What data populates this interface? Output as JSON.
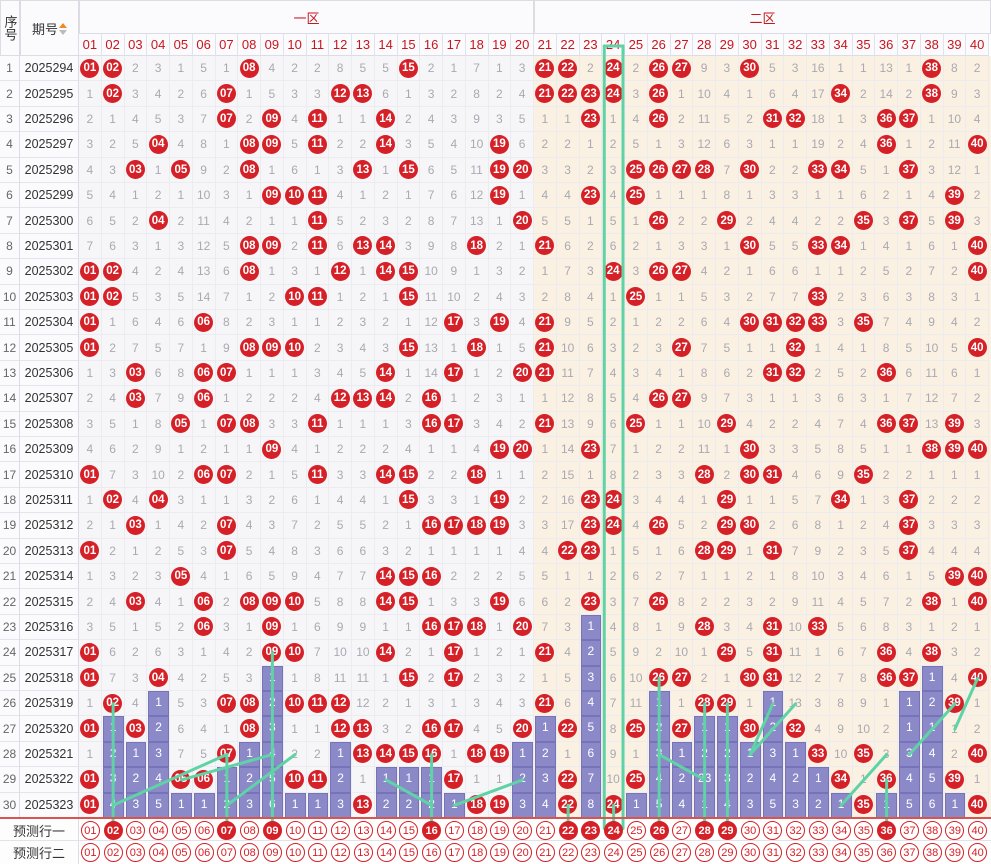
{
  "header": {
    "seq_label": "序号",
    "period_label": "期号",
    "zone1_label": "一区",
    "zone2_label": "二区",
    "numbers": [
      "01",
      "02",
      "03",
      "04",
      "05",
      "06",
      "07",
      "08",
      "09",
      "10",
      "11",
      "12",
      "13",
      "14",
      "15",
      "16",
      "17",
      "18",
      "19",
      "20",
      "21",
      "22",
      "23",
      "24",
      "25",
      "26",
      "27",
      "28",
      "29",
      "30",
      "31",
      "32",
      "33",
      "34",
      "35",
      "36",
      "37",
      "38",
      "39",
      "40"
    ]
  },
  "colors": {
    "ball": "#d62027",
    "bar": "#8c89c9",
    "trend_line": "#5fd3a5",
    "zone2_bg": "#fbf1e3"
  },
  "rows": [
    {
      "seq": "1",
      "period": "2025294",
      "cells": [
        "01",
        "02",
        "2",
        "3",
        "1",
        "5",
        "1",
        "08",
        "4",
        "2",
        "2",
        "8",
        "5",
        "5",
        "15",
        "2",
        "1",
        "7",
        "1",
        "3",
        "21",
        "22",
        "2",
        "24",
        "2",
        "26",
        "27",
        "9",
        "3",
        "30",
        "5",
        "3",
        "16",
        "1",
        "1",
        "13",
        "1",
        "38",
        "8",
        "2"
      ]
    },
    {
      "seq": "2",
      "period": "2025295",
      "cells": [
        "1",
        "02",
        "3",
        "4",
        "2",
        "6",
        "07",
        "1",
        "5",
        "3",
        "3",
        "12",
        "13",
        "6",
        "1",
        "3",
        "2",
        "8",
        "2",
        "4",
        "21",
        "22",
        "23",
        "24",
        "3",
        "26",
        "1",
        "10",
        "4",
        "1",
        "6",
        "4",
        "17",
        "34",
        "2",
        "14",
        "2",
        "38",
        "9",
        "3"
      ]
    },
    {
      "seq": "3",
      "period": "2025296",
      "cells": [
        "2",
        "1",
        "4",
        "5",
        "3",
        "7",
        "07",
        "2",
        "09",
        "4",
        "11",
        "1",
        "1",
        "14",
        "2",
        "4",
        "3",
        "9",
        "3",
        "5",
        "1",
        "1",
        "23",
        "1",
        "4",
        "26",
        "2",
        "11",
        "5",
        "2",
        "31",
        "32",
        "18",
        "1",
        "3",
        "36",
        "37",
        "1",
        "10",
        "4"
      ]
    },
    {
      "seq": "4",
      "period": "2025297",
      "cells": [
        "3",
        "2",
        "5",
        "04",
        "4",
        "8",
        "1",
        "08",
        "09",
        "5",
        "11",
        "2",
        "2",
        "14",
        "3",
        "5",
        "4",
        "10",
        "19",
        "6",
        "2",
        "2",
        "1",
        "2",
        "5",
        "1",
        "3",
        "12",
        "6",
        "3",
        "1",
        "1",
        "19",
        "2",
        "4",
        "36",
        "1",
        "2",
        "11",
        "40"
      ]
    },
    {
      "seq": "5",
      "period": "2025298",
      "cells": [
        "4",
        "3",
        "03",
        "1",
        "05",
        "9",
        "2",
        "08",
        "1",
        "6",
        "1",
        "3",
        "13",
        "1",
        "15",
        "6",
        "5",
        "11",
        "19",
        "20",
        "3",
        "3",
        "2",
        "3",
        "25",
        "26",
        "27",
        "28",
        "7",
        "30",
        "2",
        "2",
        "33",
        "34",
        "5",
        "1",
        "37",
        "3",
        "12",
        "1"
      ]
    },
    {
      "seq": "6",
      "period": "2025299",
      "cells": [
        "5",
        "4",
        "1",
        "2",
        "1",
        "10",
        "3",
        "1",
        "09",
        "10",
        "11",
        "4",
        "1",
        "2",
        "1",
        "7",
        "6",
        "12",
        "19",
        "1",
        "4",
        "4",
        "23",
        "4",
        "25",
        "1",
        "1",
        "1",
        "8",
        "1",
        "3",
        "3",
        "1",
        "1",
        "6",
        "2",
        "1",
        "4",
        "39",
        "2"
      ]
    },
    {
      "seq": "7",
      "period": "2025300",
      "cells": [
        "6",
        "5",
        "2",
        "04",
        "2",
        "11",
        "4",
        "2",
        "1",
        "1",
        "11",
        "5",
        "2",
        "3",
        "2",
        "8",
        "7",
        "13",
        "1",
        "20",
        "5",
        "5",
        "1",
        "5",
        "1",
        "26",
        "2",
        "2",
        "29",
        "2",
        "4",
        "4",
        "2",
        "2",
        "35",
        "3",
        "37",
        "5",
        "39",
        "3"
      ]
    },
    {
      "seq": "8",
      "period": "2025301",
      "cells": [
        "7",
        "6",
        "3",
        "1",
        "3",
        "12",
        "5",
        "08",
        "09",
        "2",
        "11",
        "6",
        "13",
        "14",
        "3",
        "9",
        "8",
        "18",
        "2",
        "1",
        "21",
        "6",
        "2",
        "6",
        "2",
        "1",
        "3",
        "3",
        "1",
        "30",
        "5",
        "5",
        "33",
        "34",
        "1",
        "4",
        "1",
        "6",
        "1",
        "40"
      ]
    },
    {
      "seq": "9",
      "period": "2025302",
      "cells": [
        "01",
        "02",
        "4",
        "2",
        "4",
        "13",
        "6",
        "08",
        "1",
        "3",
        "1",
        "12",
        "1",
        "14",
        "15",
        "10",
        "9",
        "1",
        "3",
        "2",
        "1",
        "7",
        "3",
        "24",
        "3",
        "26",
        "27",
        "4",
        "2",
        "1",
        "6",
        "6",
        "1",
        "1",
        "2",
        "5",
        "2",
        "7",
        "2",
        "40"
      ]
    },
    {
      "seq": "10",
      "period": "2025303",
      "cells": [
        "01",
        "02",
        "5",
        "3",
        "5",
        "14",
        "7",
        "1",
        "2",
        "10",
        "11",
        "1",
        "2",
        "1",
        "15",
        "11",
        "10",
        "2",
        "4",
        "3",
        "2",
        "8",
        "4",
        "1",
        "25",
        "1",
        "1",
        "5",
        "3",
        "2",
        "7",
        "7",
        "33",
        "2",
        "3",
        "6",
        "3",
        "8",
        "3",
        "1"
      ]
    },
    {
      "seq": "11",
      "period": "2025304",
      "cells": [
        "01",
        "1",
        "6",
        "4",
        "6",
        "06",
        "8",
        "2",
        "3",
        "1",
        "1",
        "2",
        "3",
        "2",
        "1",
        "12",
        "17",
        "3",
        "19",
        "4",
        "21",
        "9",
        "5",
        "2",
        "1",
        "2",
        "2",
        "6",
        "4",
        "30",
        "31",
        "32",
        "33",
        "3",
        "35",
        "7",
        "4",
        "9",
        "4",
        "2"
      ]
    },
    {
      "seq": "12",
      "period": "2025305",
      "cells": [
        "01",
        "2",
        "7",
        "5",
        "7",
        "1",
        "9",
        "08",
        "09",
        "10",
        "2",
        "3",
        "4",
        "3",
        "15",
        "13",
        "1",
        "18",
        "1",
        "5",
        "21",
        "10",
        "6",
        "3",
        "2",
        "3",
        "27",
        "7",
        "5",
        "1",
        "1",
        "32",
        "1",
        "4",
        "1",
        "8",
        "5",
        "10",
        "5",
        "40"
      ]
    },
    {
      "seq": "13",
      "period": "2025306",
      "cells": [
        "1",
        "3",
        "03",
        "6",
        "8",
        "06",
        "07",
        "1",
        "1",
        "1",
        "3",
        "4",
        "5",
        "14",
        "1",
        "14",
        "17",
        "1",
        "2",
        "20",
        "21",
        "11",
        "7",
        "4",
        "3",
        "4",
        "1",
        "8",
        "6",
        "2",
        "31",
        "32",
        "2",
        "5",
        "2",
        "36",
        "6",
        "11",
        "6",
        "1"
      ]
    },
    {
      "seq": "14",
      "period": "2025307",
      "cells": [
        "2",
        "4",
        "03",
        "7",
        "9",
        "06",
        "1",
        "2",
        "2",
        "2",
        "4",
        "12",
        "13",
        "14",
        "2",
        "16",
        "1",
        "2",
        "3",
        "1",
        "1",
        "12",
        "8",
        "5",
        "4",
        "26",
        "27",
        "9",
        "7",
        "3",
        "1",
        "1",
        "3",
        "6",
        "3",
        "1",
        "7",
        "12",
        "7",
        "2"
      ]
    },
    {
      "seq": "15",
      "period": "2025308",
      "cells": [
        "3",
        "5",
        "1",
        "8",
        "05",
        "1",
        "07",
        "08",
        "3",
        "3",
        "11",
        "1",
        "1",
        "1",
        "3",
        "16",
        "17",
        "3",
        "4",
        "2",
        "21",
        "13",
        "9",
        "6",
        "25",
        "1",
        "1",
        "10",
        "29",
        "4",
        "2",
        "2",
        "4",
        "7",
        "4",
        "36",
        "37",
        "13",
        "39",
        "3"
      ]
    },
    {
      "seq": "16",
      "period": "2025309",
      "cells": [
        "4",
        "6",
        "2",
        "9",
        "1",
        "2",
        "1",
        "1",
        "09",
        "4",
        "1",
        "2",
        "2",
        "2",
        "4",
        "1",
        "1",
        "4",
        "19",
        "20",
        "1",
        "14",
        "23",
        "7",
        "1",
        "2",
        "2",
        "11",
        "1",
        "30",
        "3",
        "3",
        "5",
        "8",
        "5",
        "1",
        "1",
        "38",
        "39",
        "40"
      ]
    },
    {
      "seq": "17",
      "period": "2025310",
      "cells": [
        "01",
        "7",
        "3",
        "10",
        "2",
        "06",
        "07",
        "2",
        "1",
        "5",
        "11",
        "3",
        "3",
        "14",
        "15",
        "2",
        "2",
        "18",
        "1",
        "1",
        "2",
        "15",
        "1",
        "8",
        "2",
        "3",
        "3",
        "28",
        "2",
        "30",
        "31",
        "4",
        "6",
        "9",
        "35",
        "2",
        "2",
        "1",
        "1",
        "1"
      ]
    },
    {
      "seq": "18",
      "period": "2025311",
      "cells": [
        "1",
        "02",
        "4",
        "04",
        "3",
        "1",
        "1",
        "3",
        "2",
        "6",
        "1",
        "4",
        "4",
        "1",
        "15",
        "3",
        "3",
        "1",
        "19",
        "2",
        "2",
        "16",
        "23",
        "24",
        "3",
        "4",
        "4",
        "1",
        "29",
        "1",
        "1",
        "5",
        "7",
        "34",
        "1",
        "3",
        "37",
        "2",
        "2",
        "2"
      ]
    },
    {
      "seq": "19",
      "period": "2025312",
      "cells": [
        "2",
        "1",
        "03",
        "1",
        "4",
        "2",
        "07",
        "4",
        "3",
        "7",
        "2",
        "5",
        "5",
        "2",
        "1",
        "16",
        "17",
        "18",
        "19",
        "3",
        "3",
        "17",
        "23",
        "24",
        "4",
        "26",
        "5",
        "2",
        "29",
        "30",
        "2",
        "6",
        "8",
        "1",
        "2",
        "4",
        "37",
        "3",
        "3",
        "3"
      ]
    },
    {
      "seq": "20",
      "period": "2025313",
      "cells": [
        "01",
        "2",
        "1",
        "2",
        "5",
        "3",
        "07",
        "5",
        "4",
        "8",
        "3",
        "6",
        "6",
        "3",
        "2",
        "1",
        "1",
        "1",
        "1",
        "4",
        "4",
        "22",
        "23",
        "1",
        "5",
        "1",
        "6",
        "28",
        "29",
        "1",
        "31",
        "7",
        "9",
        "2",
        "3",
        "5",
        "37",
        "4",
        "4",
        "4"
      ]
    },
    {
      "seq": "21",
      "period": "2025314",
      "cells": [
        "1",
        "3",
        "2",
        "3",
        "05",
        "4",
        "1",
        "6",
        "5",
        "9",
        "4",
        "7",
        "7",
        "14",
        "15",
        "16",
        "2",
        "2",
        "2",
        "5",
        "5",
        "1",
        "1",
        "2",
        "6",
        "2",
        "7",
        "1",
        "1",
        "2",
        "1",
        "8",
        "10",
        "3",
        "4",
        "6",
        "1",
        "5",
        "39",
        "40"
      ]
    },
    {
      "seq": "22",
      "period": "2025315",
      "cells": [
        "2",
        "4",
        "03",
        "4",
        "1",
        "06",
        "2",
        "08",
        "09",
        "10",
        "5",
        "8",
        "8",
        "14",
        "15",
        "1",
        "3",
        "3",
        "19",
        "6",
        "6",
        "2",
        "23",
        "3",
        "7",
        "26",
        "8",
        "2",
        "2",
        "3",
        "2",
        "9",
        "11",
        "4",
        "5",
        "7",
        "2",
        "38",
        "1",
        "40"
      ]
    },
    {
      "seq": "23",
      "period": "2025316",
      "cells": [
        "3",
        "5",
        "1",
        "5",
        "2",
        "06",
        "3",
        "1",
        "09",
        "1",
        "6",
        "9",
        "9",
        "1",
        "1",
        "16",
        "17",
        "18",
        "1",
        "20",
        "7",
        "3",
        "1",
        "4",
        "8",
        "1",
        "9",
        "28",
        "3",
        "4",
        "31",
        "10",
        "33",
        "5",
        "6",
        "8",
        "3",
        "1",
        "2",
        "1"
      ]
    },
    {
      "seq": "24",
      "period": "2025317",
      "cells": [
        "01",
        "6",
        "2",
        "6",
        "3",
        "1",
        "4",
        "2",
        "09",
        "10",
        "7",
        "10",
        "10",
        "14",
        "2",
        "1",
        "17",
        "1",
        "2",
        "1",
        "21",
        "4",
        "2",
        "5",
        "9",
        "2",
        "10",
        "1",
        "29",
        "5",
        "31",
        "11",
        "1",
        "6",
        "7",
        "36",
        "4",
        "38",
        "3",
        "2"
      ]
    },
    {
      "seq": "25",
      "period": "2025318",
      "cells": [
        "01",
        "7",
        "3",
        "04",
        "4",
        "2",
        "5",
        "3",
        "1",
        "1",
        "8",
        "11",
        "11",
        "1",
        "15",
        "2",
        "17",
        "2",
        "3",
        "2",
        "1",
        "5",
        "3",
        "6",
        "10",
        "26",
        "27",
        "2",
        "1",
        "30",
        "31",
        "12",
        "2",
        "7",
        "8",
        "36",
        "37",
        "1",
        "4",
        "40"
      ]
    },
    {
      "seq": "26",
      "period": "2025319",
      "cells": [
        "1",
        "02",
        "4",
        "1",
        "5",
        "3",
        "07",
        "08",
        "2",
        "10",
        "11",
        "12",
        "12",
        "2",
        "1",
        "3",
        "1",
        "3",
        "4",
        "3",
        "21",
        "6",
        "4",
        "7",
        "11",
        "1",
        "1",
        "28",
        "29",
        "1",
        "1",
        "13",
        "3",
        "8",
        "9",
        "1",
        "1",
        "2",
        "39",
        "1"
      ]
    },
    {
      "seq": "27",
      "period": "2025320",
      "cells": [
        "01",
        "1",
        "03",
        "2",
        "6",
        "4",
        "1",
        "08",
        "3",
        "1",
        "1",
        "12",
        "13",
        "3",
        "2",
        "16",
        "17",
        "4",
        "5",
        "20",
        "1",
        "22",
        "5",
        "8",
        "25",
        "2",
        "27",
        "1",
        "1",
        "30",
        "2",
        "32",
        "4",
        "9",
        "10",
        "2",
        "1",
        "1",
        "1",
        "2"
      ]
    },
    {
      "seq": "28",
      "period": "2025321",
      "cells": [
        "1",
        "2",
        "1",
        "3",
        "7",
        "5",
        "07",
        "1",
        "4",
        "2",
        "2",
        "1",
        "13",
        "14",
        "15",
        "16",
        "1",
        "18",
        "19",
        "1",
        "2",
        "1",
        "6",
        "9",
        "1",
        "3",
        "1",
        "2",
        "2",
        "1",
        "3",
        "1",
        "33",
        "10",
        "35",
        "3",
        "3",
        "4",
        "2",
        "40"
      ]
    },
    {
      "seq": "29",
      "period": "2025322",
      "cells": [
        "01",
        "3",
        "2",
        "4",
        "05",
        "06",
        "1",
        "2",
        "5",
        "10",
        "11",
        "2",
        "1",
        "1",
        "1",
        "1",
        "17",
        "1",
        "1",
        "2",
        "3",
        "22",
        "7",
        "10",
        "25",
        "4",
        "2",
        "23",
        "3",
        "2",
        "4",
        "2",
        "1",
        "34",
        "1",
        "36",
        "4",
        "5",
        "39",
        "1"
      ]
    },
    {
      "seq": "30",
      "period": "2025323",
      "cells": [
        "01",
        "4",
        "3",
        "5",
        "1",
        "1",
        "2",
        "3",
        "6",
        "1",
        "1",
        "3",
        "13",
        "2",
        "2",
        "2",
        "1",
        "18",
        "19",
        "3",
        "4",
        "22",
        "8",
        "24",
        "1",
        "5",
        "4",
        "1",
        "4",
        "3",
        "5",
        "3",
        "2",
        "1",
        "35",
        "1",
        "5",
        "6",
        "1",
        "40"
      ]
    }
  ],
  "prediction": {
    "row1_label": "预测行一",
    "row2_label": "预测行二",
    "row1_selected": [
      "02",
      "07",
      "09",
      "16",
      "22",
      "23",
      "24",
      "26",
      "28",
      "29",
      "36"
    ],
    "row2_selected": []
  }
}
